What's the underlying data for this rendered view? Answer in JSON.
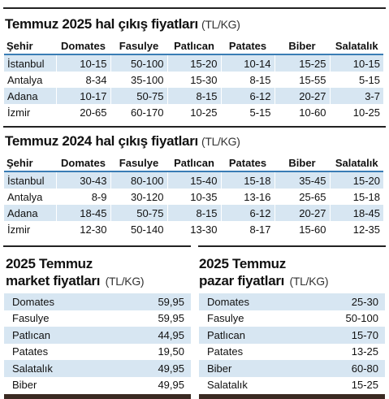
{
  "table_2025": {
    "title": "Temmuz 2025 hal çıkış fiyatları",
    "unit": "(TL/KG)",
    "headers": [
      "Şehir",
      "Domates",
      "Fasulye",
      "Patlıcan",
      "Patates",
      "Biber",
      "Salatalık"
    ],
    "rows": [
      [
        "İstanbul",
        "10-15",
        "50-100",
        "15-20",
        "10-14",
        "15-25",
        "10-15"
      ],
      [
        "Antalya",
        "8-34",
        "35-100",
        "15-30",
        "8-15",
        "15-55",
        "5-15"
      ],
      [
        "Adana",
        "10-17",
        "50-75",
        "8-15",
        "6-12",
        "20-27",
        "3-7"
      ],
      [
        "İzmir",
        "20-65",
        "60-170",
        "10-25",
        "5-15",
        "10-60",
        "10-25"
      ]
    ]
  },
  "table_2024": {
    "title": "Temmuz 2024 hal çıkış fiyatları",
    "unit": "(TL/KG)",
    "headers": [
      "Şehir",
      "Domates",
      "Fasulye",
      "Patlıcan",
      "Patates",
      "Biber",
      "Salatalık"
    ],
    "rows": [
      [
        "İstanbul",
        "30-43",
        "80-100",
        "15-40",
        "15-18",
        "35-45",
        "15-20"
      ],
      [
        "Antalya",
        "8-9",
        "30-120",
        "10-35",
        "13-16",
        "25-65",
        "15-18"
      ],
      [
        "Adana",
        "18-45",
        "50-75",
        "8-15",
        "6-12",
        "20-27",
        "18-45"
      ],
      [
        "İzmir",
        "12-30",
        "50-140",
        "13-30",
        "8-17",
        "15-60",
        "12-35"
      ]
    ]
  },
  "market_2025": {
    "title_line1": "2025 Temmuz",
    "title_line2": "market fiyatları",
    "unit": "(TL/KG)",
    "items": [
      [
        "Domates",
        "59,95"
      ],
      [
        "Fasulye",
        "59,95"
      ],
      [
        "Patlıcan",
        "44,95"
      ],
      [
        "Patates",
        "19,50"
      ],
      [
        "Salatalık",
        "49,95"
      ],
      [
        "Biber",
        "49,95"
      ]
    ]
  },
  "pazar_2025": {
    "title_line1": "2025 Temmuz",
    "title_line2": "pazar fiyatları",
    "unit": "(TL/KG)",
    "items": [
      [
        "Domates",
        "25-30"
      ],
      [
        "Fasulye",
        "50-100"
      ],
      [
        "Patlıcan",
        "15-70"
      ],
      [
        "Patates",
        "13-25"
      ],
      [
        "Biber",
        "60-80"
      ],
      [
        "Salatalık",
        "15-25"
      ]
    ]
  },
  "colors": {
    "row_stripe": "#d7e6f2",
    "header_rule": "#3a7db5",
    "rule": "#222222"
  }
}
